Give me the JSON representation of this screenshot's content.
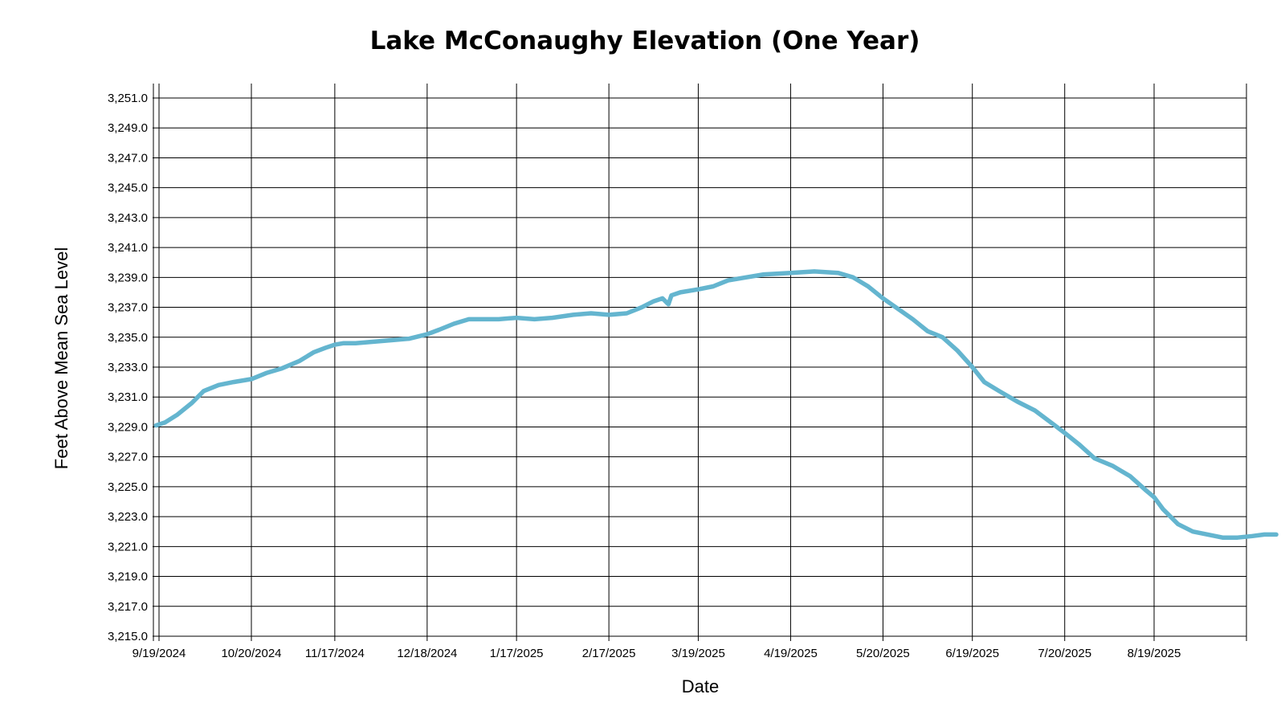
{
  "colors": {
    "series": "#64b5cf",
    "grid": "#000000"
  },
  "chart_data": {
    "type": "line",
    "title": "Lake McConaughy Elevation (One Year)",
    "xlabel": "Date",
    "ylabel": "Feet Above Mean Sea Level",
    "grid": true,
    "xlim": [
      "2024-09-19",
      "2025-09-30"
    ],
    "ylim": [
      3215.0,
      3252.0
    ],
    "x_ticks": [
      {
        "date": "2024-09-19",
        "label": "9/19/2024"
      },
      {
        "date": "2024-10-20",
        "label": "10/20/2024"
      },
      {
        "date": "2024-11-17",
        "label": "11/17/2024"
      },
      {
        "date": "2024-12-18",
        "label": "12/18/2024"
      },
      {
        "date": "2025-01-17",
        "label": "1/17/2025"
      },
      {
        "date": "2025-02-17",
        "label": "2/17/2025"
      },
      {
        "date": "2025-03-19",
        "label": "3/19/2025"
      },
      {
        "date": "2025-04-19",
        "label": "4/19/2025"
      },
      {
        "date": "2025-05-20",
        "label": "5/20/2025"
      },
      {
        "date": "2025-06-19",
        "label": "6/19/2025"
      },
      {
        "date": "2025-07-20",
        "label": "7/20/2025"
      },
      {
        "date": "2025-08-19",
        "label": "8/19/2025"
      }
    ],
    "y_ticks": [
      {
        "value": 3215.0,
        "label": "3,215.0"
      },
      {
        "value": 3217.0,
        "label": "3,217.0"
      },
      {
        "value": 3219.0,
        "label": "3,219.0"
      },
      {
        "value": 3221.0,
        "label": "3,221.0"
      },
      {
        "value": 3223.0,
        "label": "3,223.0"
      },
      {
        "value": 3225.0,
        "label": "3,225.0"
      },
      {
        "value": 3227.0,
        "label": "3,227.0"
      },
      {
        "value": 3229.0,
        "label": "3,229.0"
      },
      {
        "value": 3231.0,
        "label": "3,231.0"
      },
      {
        "value": 3233.0,
        "label": "3,233.0"
      },
      {
        "value": 3235.0,
        "label": "3,235.0"
      },
      {
        "value": 3237.0,
        "label": "3,237.0"
      },
      {
        "value": 3239.0,
        "label": "3,239.0"
      },
      {
        "value": 3241.0,
        "label": "3,241.0"
      },
      {
        "value": 3243.0,
        "label": "3,243.0"
      },
      {
        "value": 3245.0,
        "label": "3,245.0"
      },
      {
        "value": 3247.0,
        "label": "3,247.0"
      },
      {
        "value": 3249.0,
        "label": "3,249.0"
      },
      {
        "value": 3251.0,
        "label": "3,251.0"
      }
    ],
    "series": [
      {
        "x": [
          "2024-09-18",
          "2024-09-21",
          "2024-09-25",
          "2024-09-30",
          "2024-10-04",
          "2024-10-09",
          "2024-10-14",
          "2024-10-20",
          "2024-10-25",
          "2024-10-30",
          "2024-11-05",
          "2024-11-10",
          "2024-11-14",
          "2024-11-17",
          "2024-11-20",
          "2024-11-24",
          "2024-11-30",
          "2024-12-06",
          "2024-12-12",
          "2024-12-18",
          "2024-12-22",
          "2024-12-27",
          "2025-01-01",
          "2025-01-06",
          "2025-01-11",
          "2025-01-17",
          "2025-01-23",
          "2025-01-29",
          "2025-02-05",
          "2025-02-11",
          "2025-02-17",
          "2025-02-23",
          "2025-02-28",
          "2025-03-04",
          "2025-03-07",
          "2025-03-09",
          "2025-03-10",
          "2025-03-13",
          "2025-03-19",
          "2025-03-24",
          "2025-03-29",
          "2025-04-04",
          "2025-04-10",
          "2025-04-19",
          "2025-04-27",
          "2025-05-05",
          "2025-05-10",
          "2025-05-15",
          "2025-05-20",
          "2025-05-25",
          "2025-05-30",
          "2025-06-04",
          "2025-06-09",
          "2025-06-14",
          "2025-06-19",
          "2025-06-23",
          "2025-06-28",
          "2025-07-04",
          "2025-07-10",
          "2025-07-16",
          "2025-07-20",
          "2025-07-25",
          "2025-07-30",
          "2025-08-05",
          "2025-08-11",
          "2025-08-16",
          "2025-08-19",
          "2025-08-22",
          "2025-08-27",
          "2025-09-01",
          "2025-09-06",
          "2025-09-11",
          "2025-09-16",
          "2025-09-21",
          "2025-09-25",
          "2025-09-29"
        ],
        "y": [
          3229.1,
          3229.3,
          3229.8,
          3230.6,
          3231.4,
          3231.8,
          3232.0,
          3232.2,
          3232.6,
          3232.9,
          3233.4,
          3234.0,
          3234.3,
          3234.5,
          3234.6,
          3234.6,
          3234.7,
          3234.8,
          3234.9,
          3235.2,
          3235.5,
          3235.9,
          3236.2,
          3236.2,
          3236.2,
          3236.3,
          3236.2,
          3236.3,
          3236.5,
          3236.6,
          3236.5,
          3236.6,
          3237.0,
          3237.4,
          3237.6,
          3237.2,
          3237.8,
          3238.0,
          3238.2,
          3238.4,
          3238.8,
          3239.0,
          3239.2,
          3239.3,
          3239.4,
          3239.3,
          3239.0,
          3238.4,
          3237.6,
          3236.9,
          3236.2,
          3235.4,
          3235.0,
          3234.1,
          3233.0,
          3232.0,
          3231.4,
          3230.7,
          3230.1,
          3229.2,
          3228.6,
          3227.8,
          3226.9,
          3226.4,
          3225.7,
          3224.8,
          3224.3,
          3223.5,
          3222.5,
          3222.0,
          3221.8,
          3221.6,
          3221.6,
          3221.7,
          3221.8,
          3221.8
        ]
      }
    ]
  }
}
